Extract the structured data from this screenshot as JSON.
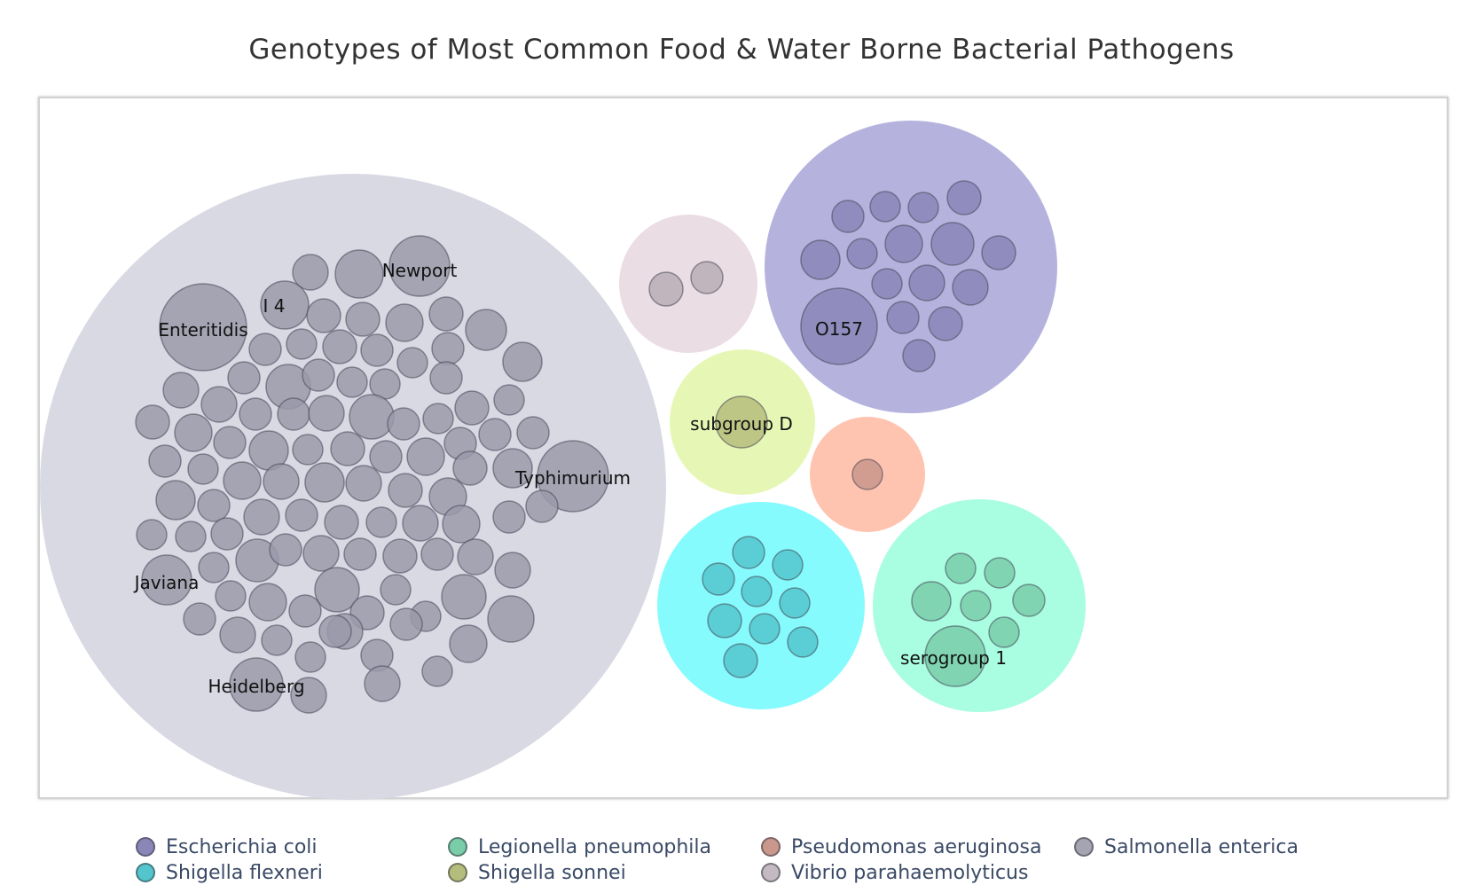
{
  "chart_data": {
    "type": "packed-bubble",
    "title": "Genotypes of Most Common Food & Water Borne Bacterial Pathogens",
    "legend_placement": "bottom",
    "series": [
      {
        "name": "Salmonella enterica",
        "color": "#9a9aaa",
        "parent_color": "#d9d9e4",
        "labeled_points": [
          "Newport",
          "I 4",
          "Enteritidis",
          "Typhimurium",
          "Javiana",
          "Heidelberg"
        ]
      },
      {
        "name": "Escherichia coli",
        "color": "#8a86b8",
        "parent_color": "#b5b3de",
        "labeled_points": [
          "O157"
        ]
      },
      {
        "name": "Vibrio parahaemolyticus",
        "color": "#b8aeb5",
        "parent_color": "#eadde4",
        "labeled_points": []
      },
      {
        "name": "Shigella sonnei",
        "color": "#b5bd7c",
        "parent_color": "#e6f7b5",
        "labeled_points": [
          "subgroup D"
        ]
      },
      {
        "name": "Pseudomonas aeruginosa",
        "color": "#c9978b",
        "parent_color": "#ffc4b0",
        "labeled_points": []
      },
      {
        "name": "Shigella flexneri",
        "color": "#52c6cc",
        "parent_color": "#86fbfd",
        "labeled_points": []
      },
      {
        "name": "Legionella pneumophila",
        "color": "#79cda9",
        "parent_color": "#a9fde1",
        "labeled_points": [
          "serogroup 1"
        ]
      }
    ]
  },
  "legend": {
    "row1": [
      {
        "label": "Escherichia coli",
        "color": "#8a86b8"
      },
      {
        "label": "Legionella pneumophila",
        "color": "#79cda9"
      },
      {
        "label": "Pseudomonas aeruginosa",
        "color": "#c9978b"
      },
      {
        "label": "Salmonella enterica",
        "color": "#a4a4b2"
      }
    ],
    "row2": [
      {
        "label": "Shigella flexneri",
        "color": "#52c6cc"
      },
      {
        "label": "Shigella sonnei",
        "color": "#b5bd7c"
      },
      {
        "label": "Vibrio parahaemolyticus",
        "color": "#c4bac2"
      }
    ]
  }
}
